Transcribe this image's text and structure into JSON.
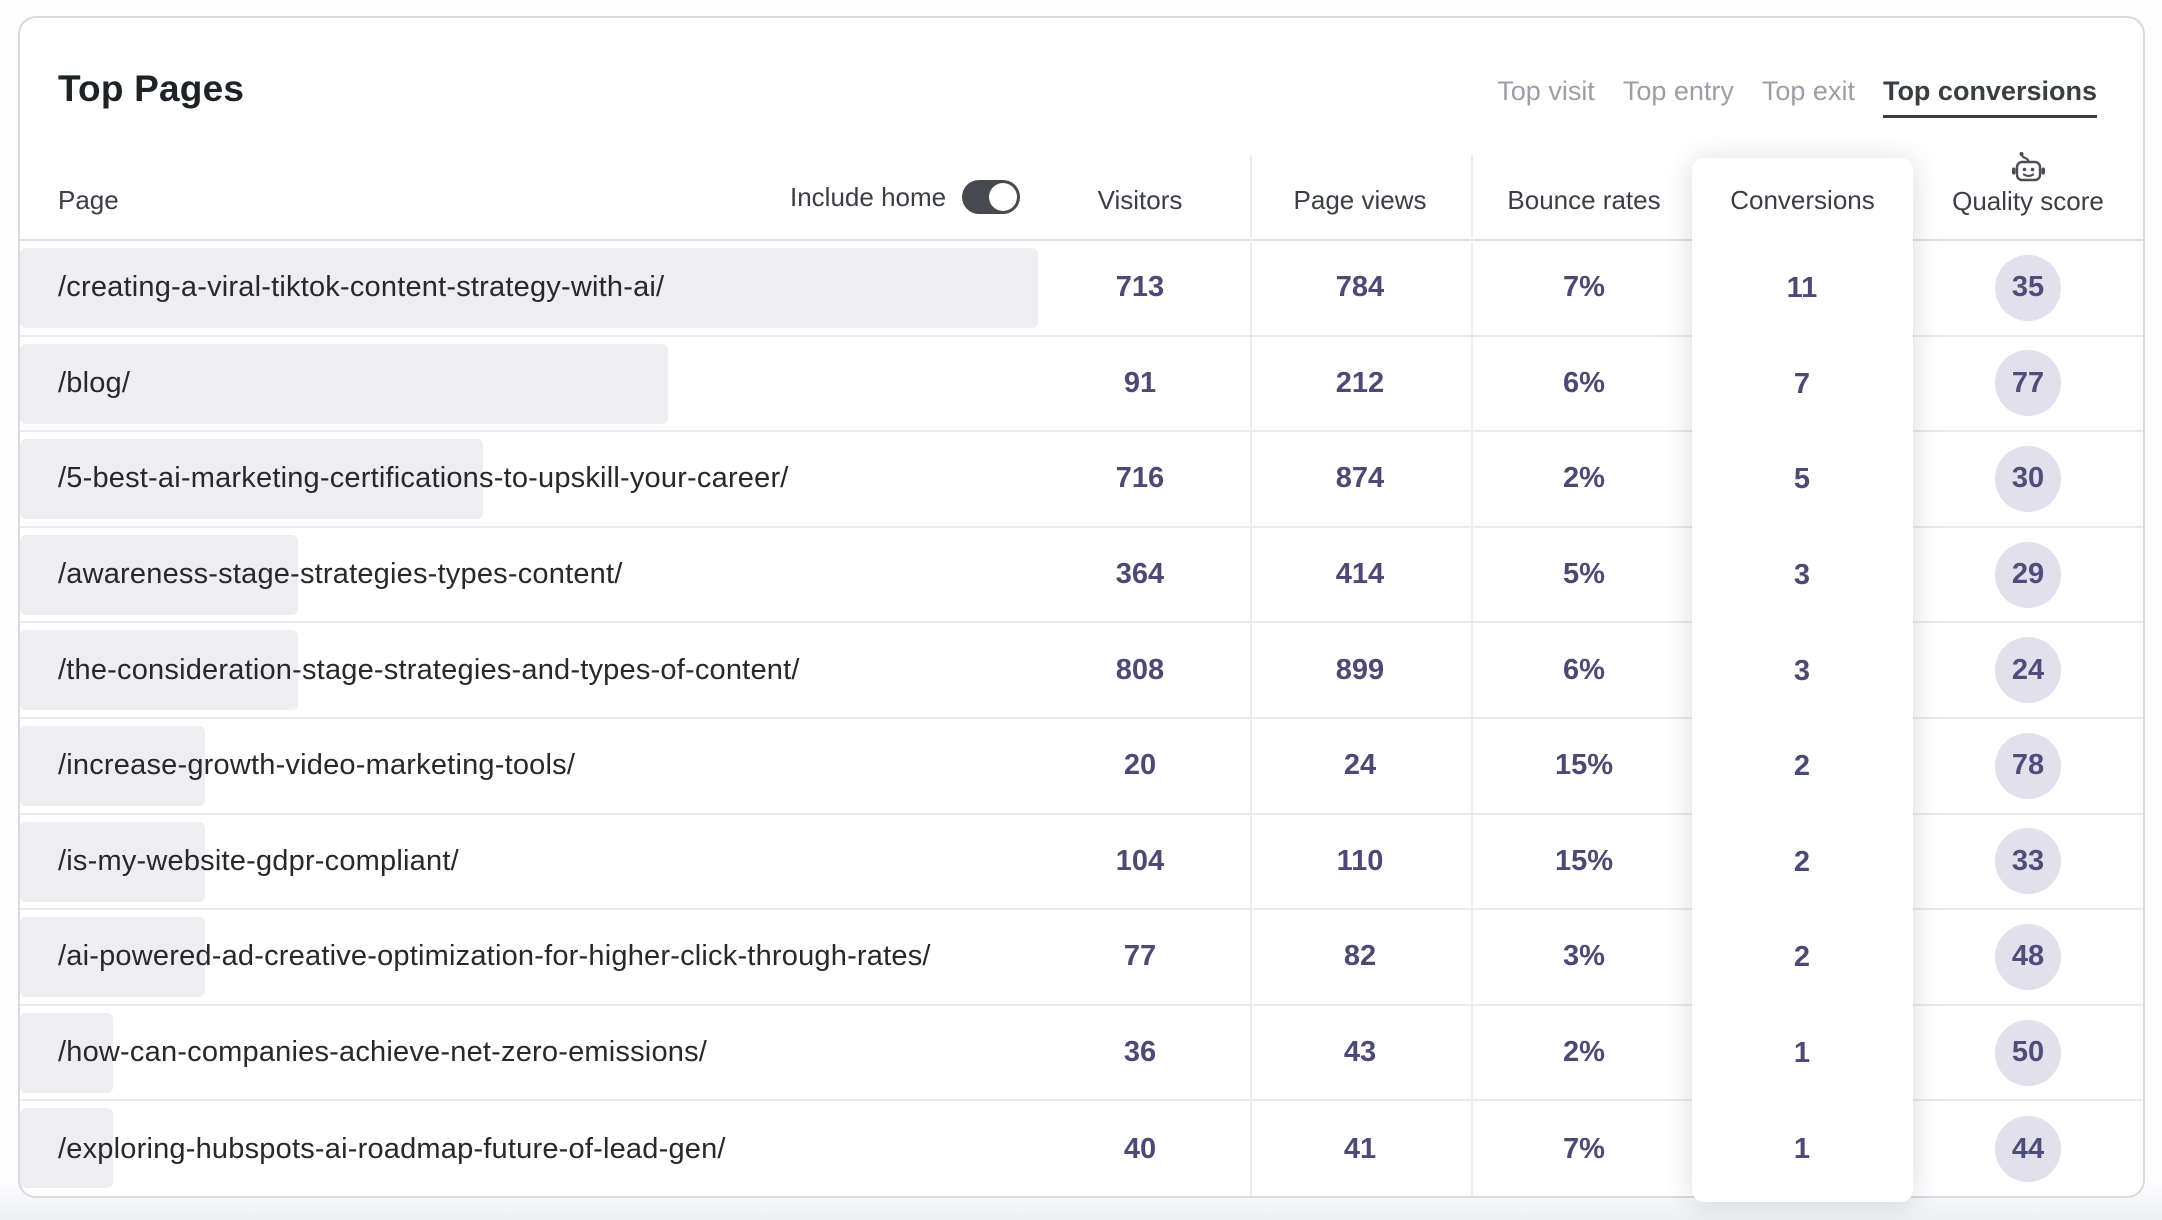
{
  "card": {
    "title": "Top Pages"
  },
  "tabs": [
    {
      "label": "Top visit",
      "active": false
    },
    {
      "label": "Top entry",
      "active": false
    },
    {
      "label": "Top exit",
      "active": false
    },
    {
      "label": "Top conversions",
      "active": true
    }
  ],
  "table": {
    "page_column_header": "Page",
    "include_home": {
      "label": "Include home",
      "on": true
    },
    "columns": [
      "Visitors",
      "Page views",
      "Bounce rates",
      "Conversions",
      "Quality score"
    ],
    "quality_icon": "robot-icon",
    "rows": [
      {
        "page": "/creating-a-viral-tiktok-content-strategy-with-ai/",
        "visitors": "713",
        "page_views": "784",
        "bounce_rate": "7%",
        "conversions": "11",
        "quality_score": "35"
      },
      {
        "page": "/blog/",
        "visitors": "91",
        "page_views": "212",
        "bounce_rate": "6%",
        "conversions": "7",
        "quality_score": "77"
      },
      {
        "page": "/5-best-ai-marketing-certifications-to-upskill-your-career/",
        "visitors": "716",
        "page_views": "874",
        "bounce_rate": "2%",
        "conversions": "5",
        "quality_score": "30"
      },
      {
        "page": "/awareness-stage-strategies-types-content/",
        "visitors": "364",
        "page_views": "414",
        "bounce_rate": "5%",
        "conversions": "3",
        "quality_score": "29"
      },
      {
        "page": "/the-consideration-stage-strategies-and-types-of-content/",
        "visitors": "808",
        "page_views": "899",
        "bounce_rate": "6%",
        "conversions": "3",
        "quality_score": "24"
      },
      {
        "page": "/increase-growth-video-marketing-tools/",
        "visitors": "20",
        "page_views": "24",
        "bounce_rate": "15%",
        "conversions": "2",
        "quality_score": "78"
      },
      {
        "page": "/is-my-website-gdpr-compliant/",
        "visitors": "104",
        "page_views": "110",
        "bounce_rate": "15%",
        "conversions": "2",
        "quality_score": "33"
      },
      {
        "page": "/ai-powered-ad-creative-optimization-for-higher-click-through-rates/",
        "visitors": "77",
        "page_views": "82",
        "bounce_rate": "3%",
        "conversions": "2",
        "quality_score": "48"
      },
      {
        "page": "/how-can-companies-achieve-net-zero-emissions/",
        "visitors": "36",
        "page_views": "43",
        "bounce_rate": "2%",
        "conversions": "1",
        "quality_score": "50"
      },
      {
        "page": "/exploring-hubspots-ai-roadmap-future-of-lead-gen/",
        "visitors": "40",
        "page_views": "41",
        "bounce_rate": "7%",
        "conversions": "1",
        "quality_score": "44"
      }
    ]
  },
  "colors": {
    "metric_text": "#4c4a75",
    "badge_background": "#e1e0ec",
    "bar_background": "#ededf2",
    "toggle_on": "#47494f"
  }
}
